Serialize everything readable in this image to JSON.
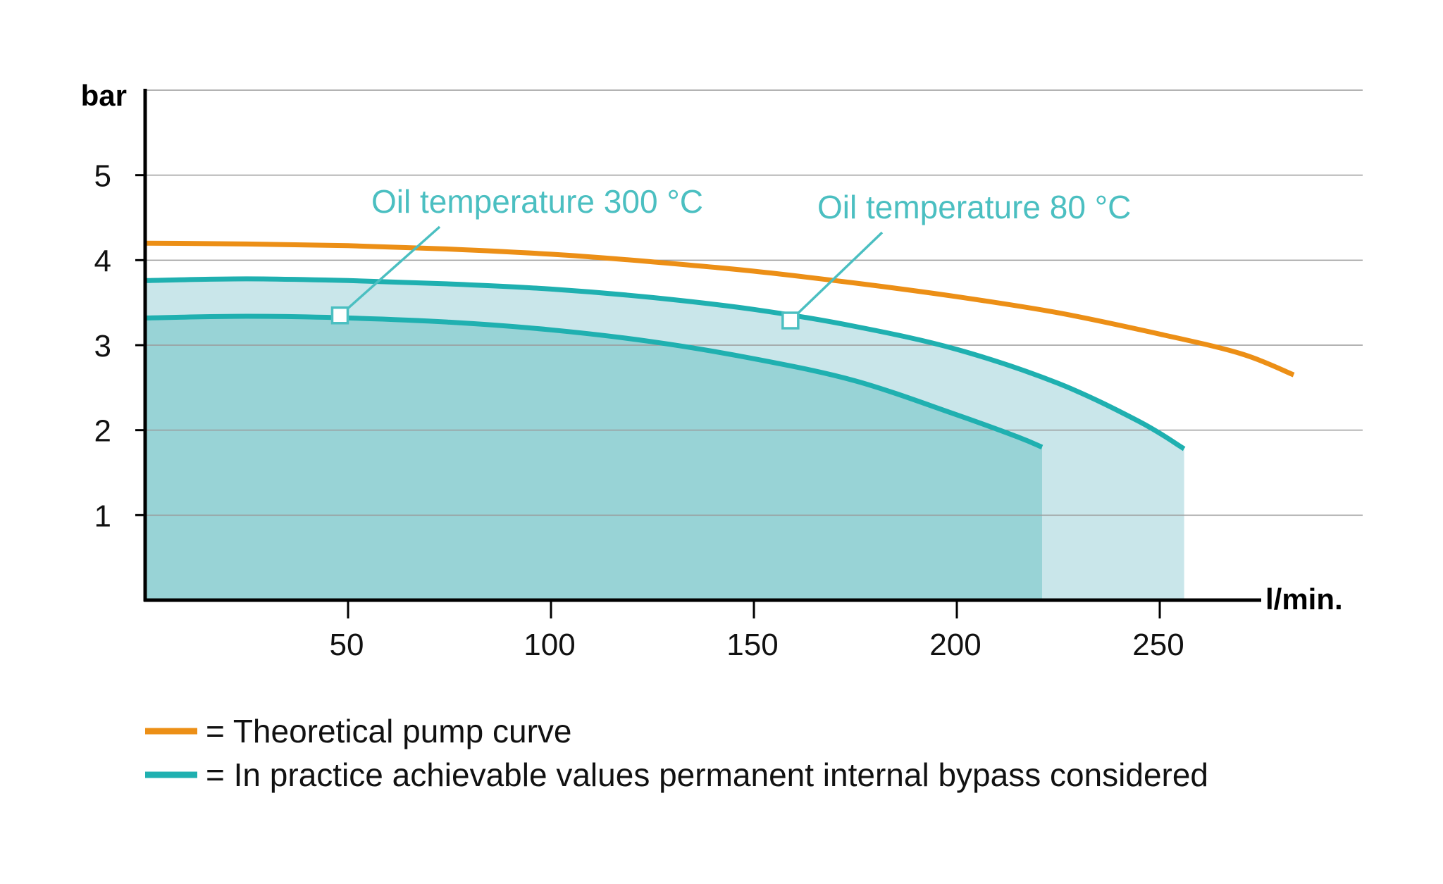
{
  "colors": {
    "orange": "#ec8f16",
    "teal": "#1fb0b0",
    "annotation": "#4bbfc1",
    "fill_light": "#c9e6ea",
    "fill_dark": "#98d3d6",
    "grid": "#9a9a9a",
    "axis": "#000000"
  },
  "chart_data": {
    "type": "line",
    "xlabel": "l/min.",
    "ylabel": "bar",
    "xlim": [
      0,
      300
    ],
    "ylim": [
      0,
      6
    ],
    "xticks": [
      50,
      100,
      150,
      200,
      250
    ],
    "yticks": [
      1,
      2,
      3,
      4,
      5
    ],
    "gridlines_y": [
      1,
      2,
      3,
      4,
      5,
      6
    ],
    "series": [
      {
        "name": "Theoretical pump curve",
        "color": "orange",
        "x": [
          0,
          25,
          50,
          75,
          100,
          125,
          150,
          175,
          200,
          225,
          250,
          270,
          283
        ],
        "y": [
          4.2,
          4.19,
          4.17,
          4.13,
          4.07,
          3.98,
          3.87,
          3.73,
          3.57,
          3.38,
          3.13,
          2.9,
          2.65
        ]
      },
      {
        "name": "Oil temperature 80 °C",
        "color": "teal",
        "fill": "fill_light",
        "x": [
          0,
          25,
          50,
          75,
          100,
          125,
          150,
          175,
          200,
          225,
          245,
          256
        ],
        "y": [
          3.76,
          3.78,
          3.76,
          3.72,
          3.66,
          3.56,
          3.42,
          3.22,
          2.95,
          2.55,
          2.1,
          1.78
        ]
      },
      {
        "name": "Oil temperature 300 °C",
        "color": "teal",
        "fill": "fill_dark",
        "x": [
          0,
          25,
          50,
          75,
          100,
          125,
          150,
          175,
          200,
          215,
          221
        ],
        "y": [
          3.32,
          3.34,
          3.32,
          3.27,
          3.18,
          3.04,
          2.84,
          2.58,
          2.18,
          1.92,
          1.8
        ]
      }
    ],
    "annotations": [
      {
        "text": "Oil temperature 300 °C",
        "point": [
          48,
          3.35
        ]
      },
      {
        "text": "Oil temperature 80 °C",
        "point": [
          159,
          3.29
        ]
      }
    ],
    "legend": {
      "placement": "bottom-left",
      "entries": [
        {
          "color": "orange",
          "text": "= Theoretical pump curve"
        },
        {
          "color": "teal",
          "text": "= In practice achievable values permanent internal bypass considered"
        }
      ]
    }
  }
}
